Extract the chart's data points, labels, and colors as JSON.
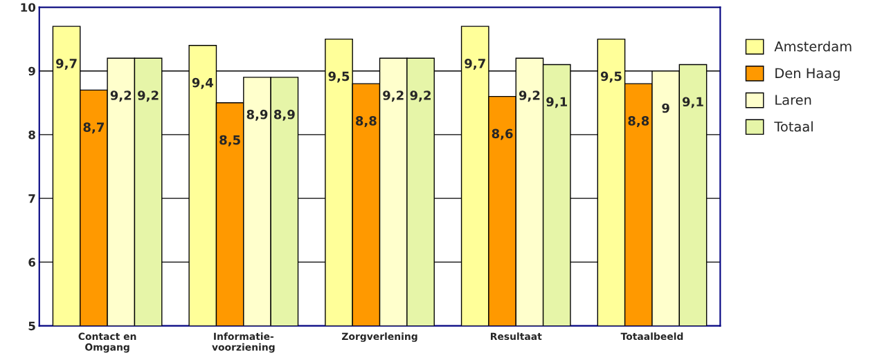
{
  "chart_data": {
    "type": "bar",
    "categories": [
      "Contact en\nOmgang",
      "Informatie-\nvoorziening",
      "Zorgverlening",
      "Resultaat",
      "Totaalbeeld"
    ],
    "series": [
      {
        "name": "Amsterdam",
        "color": "#ffff99",
        "values": [
          9.7,
          9.4,
          9.5,
          9.7,
          9.5
        ],
        "value_labels": [
          "9,7",
          "9,4",
          "9,5",
          "9,7",
          "9,5"
        ]
      },
      {
        "name": "Den Haag",
        "color": "#ff9900",
        "values": [
          8.7,
          8.5,
          8.8,
          8.6,
          8.8
        ],
        "value_labels": [
          "8,7",
          "8,5",
          "8,8",
          "8,6",
          "8,8"
        ]
      },
      {
        "name": "Laren",
        "color": "#ffffcc",
        "values": [
          9.2,
          8.9,
          9.2,
          9.2,
          9.0
        ],
        "value_labels": [
          "9,2",
          "8,9",
          "9,2",
          "9,2",
          "9"
        ]
      },
      {
        "name": "Totaal",
        "color": "#e6f5a8",
        "values": [
          9.2,
          8.9,
          9.2,
          9.1,
          9.1
        ],
        "value_labels": [
          "9,2",
          "8,9",
          "9,2",
          "9,1",
          "9,1"
        ]
      }
    ],
    "ylim": [
      5,
      10
    ],
    "yticks": [
      5,
      6,
      7,
      8,
      9,
      10
    ],
    "grid": "y",
    "legend": "right"
  }
}
